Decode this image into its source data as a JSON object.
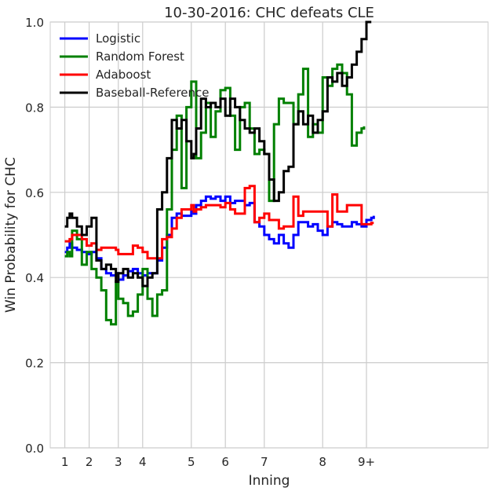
{
  "chart_data": {
    "type": "line",
    "step": true,
    "title": "10-30-2016: CHC defeats CLE",
    "xlabel": "Inning",
    "ylabel": "Win Probability for CHC",
    "ylim": [
      0.0,
      1.0
    ],
    "xlim": [
      0.7,
      9.7
    ],
    "yticks": [
      0.0,
      0.2,
      0.4,
      0.6,
      0.8,
      1.0
    ],
    "ytick_labels": [
      "0.0",
      "0.2",
      "0.4",
      "0.6",
      "0.8",
      "1.0"
    ],
    "xticks": [
      1.0,
      1.5,
      2.1,
      2.6,
      3.6,
      4.3,
      5.1,
      6.3,
      7.2
    ],
    "xtick_labels": [
      "1",
      "2",
      "3",
      "4",
      "5",
      "6",
      "7",
      "8",
      "9+"
    ],
    "grid": true,
    "legend_position": "top-left",
    "series": [
      {
        "name": "Logistic",
        "color": "#0000ff",
        "points": [
          [
            1.0,
            0.46
          ],
          [
            1.05,
            0.47
          ],
          [
            1.1,
            0.48
          ],
          [
            1.15,
            0.47
          ],
          [
            1.25,
            0.465
          ],
          [
            1.35,
            0.46
          ],
          [
            1.45,
            0.455
          ],
          [
            1.55,
            0.46
          ],
          [
            1.65,
            0.445
          ],
          [
            1.75,
            0.42
          ],
          [
            1.85,
            0.41
          ],
          [
            1.95,
            0.405
          ],
          [
            2.05,
            0.41
          ],
          [
            2.1,
            0.395
          ],
          [
            2.2,
            0.405
          ],
          [
            2.3,
            0.415
          ],
          [
            2.4,
            0.42
          ],
          [
            2.5,
            0.41
          ],
          [
            2.6,
            0.405
          ],
          [
            2.7,
            0.41
          ],
          [
            2.8,
            0.41
          ],
          [
            2.9,
            0.44
          ],
          [
            3.0,
            0.47
          ],
          [
            3.1,
            0.5
          ],
          [
            3.2,
            0.54
          ],
          [
            3.3,
            0.55
          ],
          [
            3.4,
            0.545
          ],
          [
            3.5,
            0.545
          ],
          [
            3.6,
            0.555
          ],
          [
            3.65,
            0.55
          ],
          [
            3.7,
            0.57
          ],
          [
            3.8,
            0.58
          ],
          [
            3.9,
            0.59
          ],
          [
            4.0,
            0.585
          ],
          [
            4.1,
            0.59
          ],
          [
            4.2,
            0.58
          ],
          [
            4.3,
            0.59
          ],
          [
            4.4,
            0.575
          ],
          [
            4.5,
            0.58
          ],
          [
            4.6,
            0.58
          ],
          [
            4.7,
            0.57
          ],
          [
            4.8,
            0.575
          ],
          [
            4.9,
            0.53
          ],
          [
            5.0,
            0.52
          ],
          [
            5.1,
            0.5
          ],
          [
            5.2,
            0.49
          ],
          [
            5.3,
            0.48
          ],
          [
            5.4,
            0.5
          ],
          [
            5.5,
            0.48
          ],
          [
            5.6,
            0.47
          ],
          [
            5.7,
            0.5
          ],
          [
            5.8,
            0.53
          ],
          [
            5.9,
            0.53
          ],
          [
            6.0,
            0.52
          ],
          [
            6.1,
            0.525
          ],
          [
            6.2,
            0.51
          ],
          [
            6.3,
            0.5
          ],
          [
            6.4,
            0.52
          ],
          [
            6.5,
            0.53
          ],
          [
            6.6,
            0.525
          ],
          [
            6.7,
            0.52
          ],
          [
            6.8,
            0.52
          ],
          [
            6.9,
            0.53
          ],
          [
            7.0,
            0.525
          ],
          [
            7.1,
            0.52
          ],
          [
            7.2,
            0.535
          ],
          [
            7.3,
            0.54
          ],
          [
            7.35,
            0.545
          ]
        ]
      },
      {
        "name": "Random Forest",
        "color": "#008000",
        "points": [
          [
            1.0,
            0.45
          ],
          [
            1.05,
            0.46
          ],
          [
            1.1,
            0.45
          ],
          [
            1.15,
            0.51
          ],
          [
            1.25,
            0.49
          ],
          [
            1.35,
            0.43
          ],
          [
            1.45,
            0.46
          ],
          [
            1.55,
            0.42
          ],
          [
            1.65,
            0.4
          ],
          [
            1.75,
            0.37
          ],
          [
            1.85,
            0.3
          ],
          [
            1.95,
            0.29
          ],
          [
            2.05,
            0.39
          ],
          [
            2.1,
            0.35
          ],
          [
            2.2,
            0.34
          ],
          [
            2.3,
            0.31
          ],
          [
            2.4,
            0.32
          ],
          [
            2.5,
            0.36
          ],
          [
            2.6,
            0.42
          ],
          [
            2.7,
            0.35
          ],
          [
            2.8,
            0.31
          ],
          [
            2.9,
            0.36
          ],
          [
            3.0,
            0.37
          ],
          [
            3.1,
            0.56
          ],
          [
            3.2,
            0.7
          ],
          [
            3.3,
            0.78
          ],
          [
            3.4,
            0.61
          ],
          [
            3.5,
            0.8
          ],
          [
            3.6,
            0.86
          ],
          [
            3.7,
            0.68
          ],
          [
            3.8,
            0.74
          ],
          [
            3.9,
            0.81
          ],
          [
            4.0,
            0.73
          ],
          [
            4.1,
            0.79
          ],
          [
            4.2,
            0.84
          ],
          [
            4.3,
            0.845
          ],
          [
            4.4,
            0.78
          ],
          [
            4.5,
            0.7
          ],
          [
            4.6,
            0.8
          ],
          [
            4.7,
            0.81
          ],
          [
            4.8,
            0.75
          ],
          [
            4.9,
            0.69
          ],
          [
            5.0,
            0.7
          ],
          [
            5.1,
            0.69
          ],
          [
            5.2,
            0.58
          ],
          [
            5.3,
            0.76
          ],
          [
            5.4,
            0.82
          ],
          [
            5.5,
            0.81
          ],
          [
            5.6,
            0.81
          ],
          [
            5.7,
            0.76
          ],
          [
            5.8,
            0.83
          ],
          [
            5.9,
            0.89
          ],
          [
            6.0,
            0.73
          ],
          [
            6.1,
            0.76
          ],
          [
            6.2,
            0.74
          ],
          [
            6.3,
            0.87
          ],
          [
            6.4,
            0.85
          ],
          [
            6.5,
            0.89
          ],
          [
            6.6,
            0.9
          ],
          [
            6.7,
            0.88
          ],
          [
            6.8,
            0.83
          ],
          [
            6.9,
            0.71
          ],
          [
            7.0,
            0.74
          ],
          [
            7.1,
            0.75
          ],
          [
            7.15,
            0.755
          ]
        ]
      },
      {
        "name": "Adaboost",
        "color": "#ff0000",
        "points": [
          [
            1.0,
            0.485
          ],
          [
            1.05,
            0.485
          ],
          [
            1.1,
            0.49
          ],
          [
            1.15,
            0.5
          ],
          [
            1.25,
            0.5
          ],
          [
            1.35,
            0.49
          ],
          [
            1.45,
            0.475
          ],
          [
            1.55,
            0.48
          ],
          [
            1.65,
            0.465
          ],
          [
            1.75,
            0.47
          ],
          [
            1.85,
            0.47
          ],
          [
            1.95,
            0.47
          ],
          [
            2.05,
            0.465
          ],
          [
            2.1,
            0.455
          ],
          [
            2.2,
            0.455
          ],
          [
            2.3,
            0.455
          ],
          [
            2.4,
            0.475
          ],
          [
            2.5,
            0.47
          ],
          [
            2.6,
            0.46
          ],
          [
            2.7,
            0.445
          ],
          [
            2.8,
            0.445
          ],
          [
            2.9,
            0.445
          ],
          [
            3.0,
            0.49
          ],
          [
            3.1,
            0.495
          ],
          [
            3.2,
            0.515
          ],
          [
            3.3,
            0.54
          ],
          [
            3.4,
            0.56
          ],
          [
            3.5,
            0.56
          ],
          [
            3.6,
            0.57
          ],
          [
            3.65,
            0.555
          ],
          [
            3.7,
            0.56
          ],
          [
            3.8,
            0.565
          ],
          [
            3.9,
            0.57
          ],
          [
            4.0,
            0.57
          ],
          [
            4.1,
            0.57
          ],
          [
            4.2,
            0.565
          ],
          [
            4.3,
            0.575
          ],
          [
            4.4,
            0.56
          ],
          [
            4.5,
            0.55
          ],
          [
            4.6,
            0.55
          ],
          [
            4.7,
            0.61
          ],
          [
            4.8,
            0.615
          ],
          [
            4.9,
            0.53
          ],
          [
            5.0,
            0.54
          ],
          [
            5.1,
            0.55
          ],
          [
            5.2,
            0.535
          ],
          [
            5.3,
            0.535
          ],
          [
            5.4,
            0.515
          ],
          [
            5.5,
            0.52
          ],
          [
            5.6,
            0.52
          ],
          [
            5.7,
            0.59
          ],
          [
            5.8,
            0.545
          ],
          [
            5.9,
            0.555
          ],
          [
            6.0,
            0.555
          ],
          [
            6.1,
            0.555
          ],
          [
            6.2,
            0.555
          ],
          [
            6.3,
            0.555
          ],
          [
            6.4,
            0.52
          ],
          [
            6.5,
            0.595
          ],
          [
            6.6,
            0.555
          ],
          [
            6.7,
            0.555
          ],
          [
            6.8,
            0.57
          ],
          [
            6.9,
            0.57
          ],
          [
            7.0,
            0.57
          ],
          [
            7.1,
            0.525
          ],
          [
            7.2,
            0.525
          ],
          [
            7.3,
            0.528
          ],
          [
            7.35,
            0.528
          ]
        ]
      },
      {
        "name": "Baseball-Reference",
        "color": "#000000",
        "points": [
          [
            1.0,
            0.52
          ],
          [
            1.05,
            0.54
          ],
          [
            1.1,
            0.55
          ],
          [
            1.15,
            0.54
          ],
          [
            1.25,
            0.52
          ],
          [
            1.35,
            0.5
          ],
          [
            1.45,
            0.52
          ],
          [
            1.55,
            0.54
          ],
          [
            1.65,
            0.44
          ],
          [
            1.75,
            0.42
          ],
          [
            1.85,
            0.43
          ],
          [
            1.95,
            0.42
          ],
          [
            2.05,
            0.39
          ],
          [
            2.1,
            0.41
          ],
          [
            2.2,
            0.42
          ],
          [
            2.3,
            0.4
          ],
          [
            2.4,
            0.41
          ],
          [
            2.5,
            0.4
          ],
          [
            2.6,
            0.38
          ],
          [
            2.7,
            0.4
          ],
          [
            2.8,
            0.41
          ],
          [
            2.9,
            0.56
          ],
          [
            3.0,
            0.6
          ],
          [
            3.1,
            0.68
          ],
          [
            3.2,
            0.77
          ],
          [
            3.3,
            0.75
          ],
          [
            3.4,
            0.77
          ],
          [
            3.5,
            0.72
          ],
          [
            3.6,
            0.68
          ],
          [
            3.65,
            0.69
          ],
          [
            3.7,
            0.75
          ],
          [
            3.8,
            0.82
          ],
          [
            3.9,
            0.8
          ],
          [
            4.0,
            0.81
          ],
          [
            4.1,
            0.8
          ],
          [
            4.2,
            0.82
          ],
          [
            4.3,
            0.78
          ],
          [
            4.4,
            0.82
          ],
          [
            4.5,
            0.8
          ],
          [
            4.6,
            0.77
          ],
          [
            4.7,
            0.75
          ],
          [
            4.8,
            0.74
          ],
          [
            4.9,
            0.75
          ],
          [
            5.0,
            0.72
          ],
          [
            5.1,
            0.69
          ],
          [
            5.2,
            0.63
          ],
          [
            5.3,
            0.58
          ],
          [
            5.4,
            0.6
          ],
          [
            5.5,
            0.65
          ],
          [
            5.6,
            0.66
          ],
          [
            5.7,
            0.76
          ],
          [
            5.8,
            0.79
          ],
          [
            5.9,
            0.76
          ],
          [
            6.0,
            0.78
          ],
          [
            6.1,
            0.74
          ],
          [
            6.2,
            0.77
          ],
          [
            6.3,
            0.79
          ],
          [
            6.4,
            0.87
          ],
          [
            6.5,
            0.86
          ],
          [
            6.6,
            0.88
          ],
          [
            6.7,
            0.85
          ],
          [
            6.8,
            0.87
          ],
          [
            6.9,
            0.9
          ],
          [
            7.0,
            0.93
          ],
          [
            7.1,
            0.96
          ],
          [
            7.2,
            1.0
          ],
          [
            7.3,
            1.0
          ]
        ]
      }
    ]
  }
}
